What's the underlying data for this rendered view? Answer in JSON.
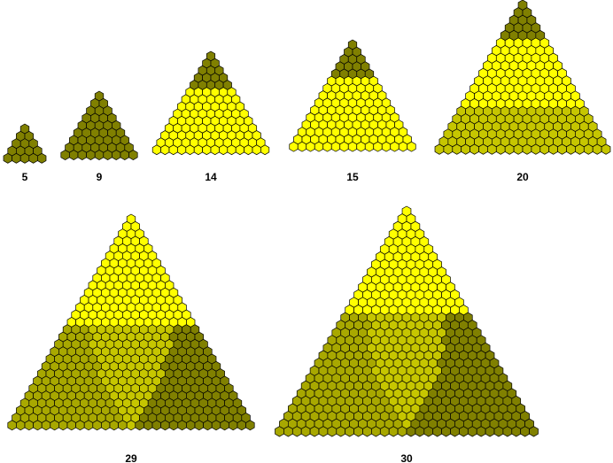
{
  "colors": {
    "bright": "#ffff00",
    "medium": "#c6c600",
    "dark": "#808000",
    "edge": "#000000",
    "background": "#ffffff"
  },
  "pyramids": [
    {
      "label": "5",
      "rows": 5,
      "bands": [
        {
          "rows": 5,
          "shade": "dark"
        }
      ]
    },
    {
      "label": "9",
      "rows": 9,
      "bands": [
        {
          "rows": 9,
          "shade": "dark"
        }
      ]
    },
    {
      "label": "14",
      "rows": 14,
      "bands": [
        {
          "rows": 5,
          "shade": "dark"
        },
        {
          "rows": 9,
          "shade": "bright"
        }
      ]
    },
    {
      "label": "15",
      "rows": 15,
      "bands": [
        {
          "rows": 5,
          "shade": "dark"
        },
        {
          "rows": 10,
          "shade": "bright"
        }
      ]
    },
    {
      "label": "20",
      "rows": 20,
      "bands": [
        {
          "rows": 5,
          "shade": "dark"
        },
        {
          "rows": 9,
          "shade": "bright"
        },
        {
          "rows": 6,
          "shade": "medium"
        }
      ]
    },
    {
      "label": "29",
      "rows": 29,
      "bands": [
        {
          "rows": 15,
          "shade": "bright"
        },
        {
          "rows": 14,
          "shade": "split"
        }
      ]
    },
    {
      "label": "30",
      "rows": 30,
      "bands": [
        {
          "rows": 14,
          "shade": "bright"
        },
        {
          "rows": 16,
          "shade": "split"
        }
      ]
    }
  ]
}
